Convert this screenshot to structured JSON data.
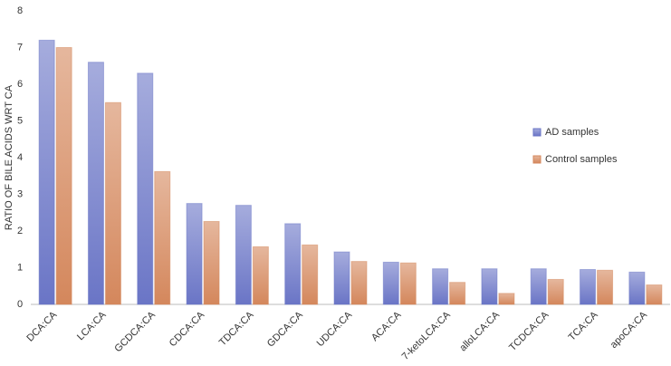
{
  "chart_data": {
    "type": "bar",
    "y_label": "RATIO OF BILE ACIDS WRT CA",
    "categories": [
      "DCA:CA",
      "LCA:CA",
      "GCDCA:CA",
      "CDCA:CA",
      "TDCA:CA",
      "GDCA:CA",
      "UDCA:CA",
      "ACA:CA",
      "7-ketoLCA:CA",
      "alloLCA:CA",
      "TCDCA:CA",
      "TCA:CA",
      "apoCA:CA"
    ],
    "series": [
      {
        "name": "AD samples",
        "color": "#6a75c6",
        "values": [
          7.2,
          6.6,
          6.3,
          2.75,
          2.7,
          2.2,
          1.43,
          1.15,
          0.97,
          0.97,
          0.97,
          0.95,
          0.88
        ]
      },
      {
        "name": "Control samples",
        "color": "#d4875c",
        "values": [
          7.0,
          5.5,
          3.62,
          2.26,
          1.57,
          1.62,
          1.17,
          1.13,
          0.6,
          0.3,
          0.68,
          0.93,
          0.53
        ]
      }
    ],
    "ylim": [
      0,
      8
    ],
    "yticks": [
      0,
      1,
      2,
      3,
      4,
      5,
      6,
      7,
      8
    ],
    "legend": "right"
  }
}
